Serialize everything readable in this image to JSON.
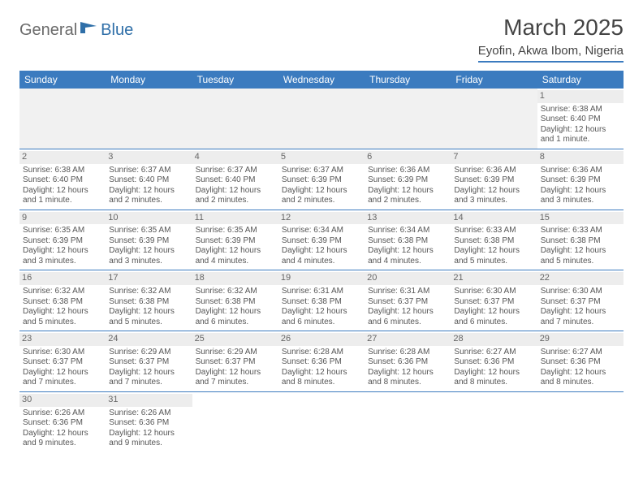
{
  "logo": {
    "part1": "General",
    "part2": "Blue"
  },
  "title": "March 2025",
  "location": "Eyofin, Akwa Ibom, Nigeria",
  "headers": [
    "Sunday",
    "Monday",
    "Tuesday",
    "Wednesday",
    "Thursday",
    "Friday",
    "Saturday"
  ],
  "colors": {
    "header_bg": "#3b7bbf",
    "header_text": "#ffffff",
    "border": "#3b7bbf",
    "daynum_bg": "#ededed",
    "empty_bg": "#f1f1f1",
    "logo_gray": "#6b6b6b",
    "logo_blue": "#2f6fa8"
  },
  "weeks": [
    [
      null,
      null,
      null,
      null,
      null,
      null,
      {
        "n": "1",
        "sr": "Sunrise: 6:38 AM",
        "ss": "Sunset: 6:40 PM",
        "dl": "Daylight: 12 hours and 1 minute."
      }
    ],
    [
      {
        "n": "2",
        "sr": "Sunrise: 6:38 AM",
        "ss": "Sunset: 6:40 PM",
        "dl": "Daylight: 12 hours and 1 minute."
      },
      {
        "n": "3",
        "sr": "Sunrise: 6:37 AM",
        "ss": "Sunset: 6:40 PM",
        "dl": "Daylight: 12 hours and 2 minutes."
      },
      {
        "n": "4",
        "sr": "Sunrise: 6:37 AM",
        "ss": "Sunset: 6:40 PM",
        "dl": "Daylight: 12 hours and 2 minutes."
      },
      {
        "n": "5",
        "sr": "Sunrise: 6:37 AM",
        "ss": "Sunset: 6:39 PM",
        "dl": "Daylight: 12 hours and 2 minutes."
      },
      {
        "n": "6",
        "sr": "Sunrise: 6:36 AM",
        "ss": "Sunset: 6:39 PM",
        "dl": "Daylight: 12 hours and 2 minutes."
      },
      {
        "n": "7",
        "sr": "Sunrise: 6:36 AM",
        "ss": "Sunset: 6:39 PM",
        "dl": "Daylight: 12 hours and 3 minutes."
      },
      {
        "n": "8",
        "sr": "Sunrise: 6:36 AM",
        "ss": "Sunset: 6:39 PM",
        "dl": "Daylight: 12 hours and 3 minutes."
      }
    ],
    [
      {
        "n": "9",
        "sr": "Sunrise: 6:35 AM",
        "ss": "Sunset: 6:39 PM",
        "dl": "Daylight: 12 hours and 3 minutes."
      },
      {
        "n": "10",
        "sr": "Sunrise: 6:35 AM",
        "ss": "Sunset: 6:39 PM",
        "dl": "Daylight: 12 hours and 3 minutes."
      },
      {
        "n": "11",
        "sr": "Sunrise: 6:35 AM",
        "ss": "Sunset: 6:39 PM",
        "dl": "Daylight: 12 hours and 4 minutes."
      },
      {
        "n": "12",
        "sr": "Sunrise: 6:34 AM",
        "ss": "Sunset: 6:39 PM",
        "dl": "Daylight: 12 hours and 4 minutes."
      },
      {
        "n": "13",
        "sr": "Sunrise: 6:34 AM",
        "ss": "Sunset: 6:38 PM",
        "dl": "Daylight: 12 hours and 4 minutes."
      },
      {
        "n": "14",
        "sr": "Sunrise: 6:33 AM",
        "ss": "Sunset: 6:38 PM",
        "dl": "Daylight: 12 hours and 5 minutes."
      },
      {
        "n": "15",
        "sr": "Sunrise: 6:33 AM",
        "ss": "Sunset: 6:38 PM",
        "dl": "Daylight: 12 hours and 5 minutes."
      }
    ],
    [
      {
        "n": "16",
        "sr": "Sunrise: 6:32 AM",
        "ss": "Sunset: 6:38 PM",
        "dl": "Daylight: 12 hours and 5 minutes."
      },
      {
        "n": "17",
        "sr": "Sunrise: 6:32 AM",
        "ss": "Sunset: 6:38 PM",
        "dl": "Daylight: 12 hours and 5 minutes."
      },
      {
        "n": "18",
        "sr": "Sunrise: 6:32 AM",
        "ss": "Sunset: 6:38 PM",
        "dl": "Daylight: 12 hours and 6 minutes."
      },
      {
        "n": "19",
        "sr": "Sunrise: 6:31 AM",
        "ss": "Sunset: 6:38 PM",
        "dl": "Daylight: 12 hours and 6 minutes."
      },
      {
        "n": "20",
        "sr": "Sunrise: 6:31 AM",
        "ss": "Sunset: 6:37 PM",
        "dl": "Daylight: 12 hours and 6 minutes."
      },
      {
        "n": "21",
        "sr": "Sunrise: 6:30 AM",
        "ss": "Sunset: 6:37 PM",
        "dl": "Daylight: 12 hours and 6 minutes."
      },
      {
        "n": "22",
        "sr": "Sunrise: 6:30 AM",
        "ss": "Sunset: 6:37 PM",
        "dl": "Daylight: 12 hours and 7 minutes."
      }
    ],
    [
      {
        "n": "23",
        "sr": "Sunrise: 6:30 AM",
        "ss": "Sunset: 6:37 PM",
        "dl": "Daylight: 12 hours and 7 minutes."
      },
      {
        "n": "24",
        "sr": "Sunrise: 6:29 AM",
        "ss": "Sunset: 6:37 PM",
        "dl": "Daylight: 12 hours and 7 minutes."
      },
      {
        "n": "25",
        "sr": "Sunrise: 6:29 AM",
        "ss": "Sunset: 6:37 PM",
        "dl": "Daylight: 12 hours and 7 minutes."
      },
      {
        "n": "26",
        "sr": "Sunrise: 6:28 AM",
        "ss": "Sunset: 6:36 PM",
        "dl": "Daylight: 12 hours and 8 minutes."
      },
      {
        "n": "27",
        "sr": "Sunrise: 6:28 AM",
        "ss": "Sunset: 6:36 PM",
        "dl": "Daylight: 12 hours and 8 minutes."
      },
      {
        "n": "28",
        "sr": "Sunrise: 6:27 AM",
        "ss": "Sunset: 6:36 PM",
        "dl": "Daylight: 12 hours and 8 minutes."
      },
      {
        "n": "29",
        "sr": "Sunrise: 6:27 AM",
        "ss": "Sunset: 6:36 PM",
        "dl": "Daylight: 12 hours and 8 minutes."
      }
    ],
    [
      {
        "n": "30",
        "sr": "Sunrise: 6:26 AM",
        "ss": "Sunset: 6:36 PM",
        "dl": "Daylight: 12 hours and 9 minutes."
      },
      {
        "n": "31",
        "sr": "Sunrise: 6:26 AM",
        "ss": "Sunset: 6:36 PM",
        "dl": "Daylight: 12 hours and 9 minutes."
      },
      null,
      null,
      null,
      null,
      null
    ]
  ]
}
